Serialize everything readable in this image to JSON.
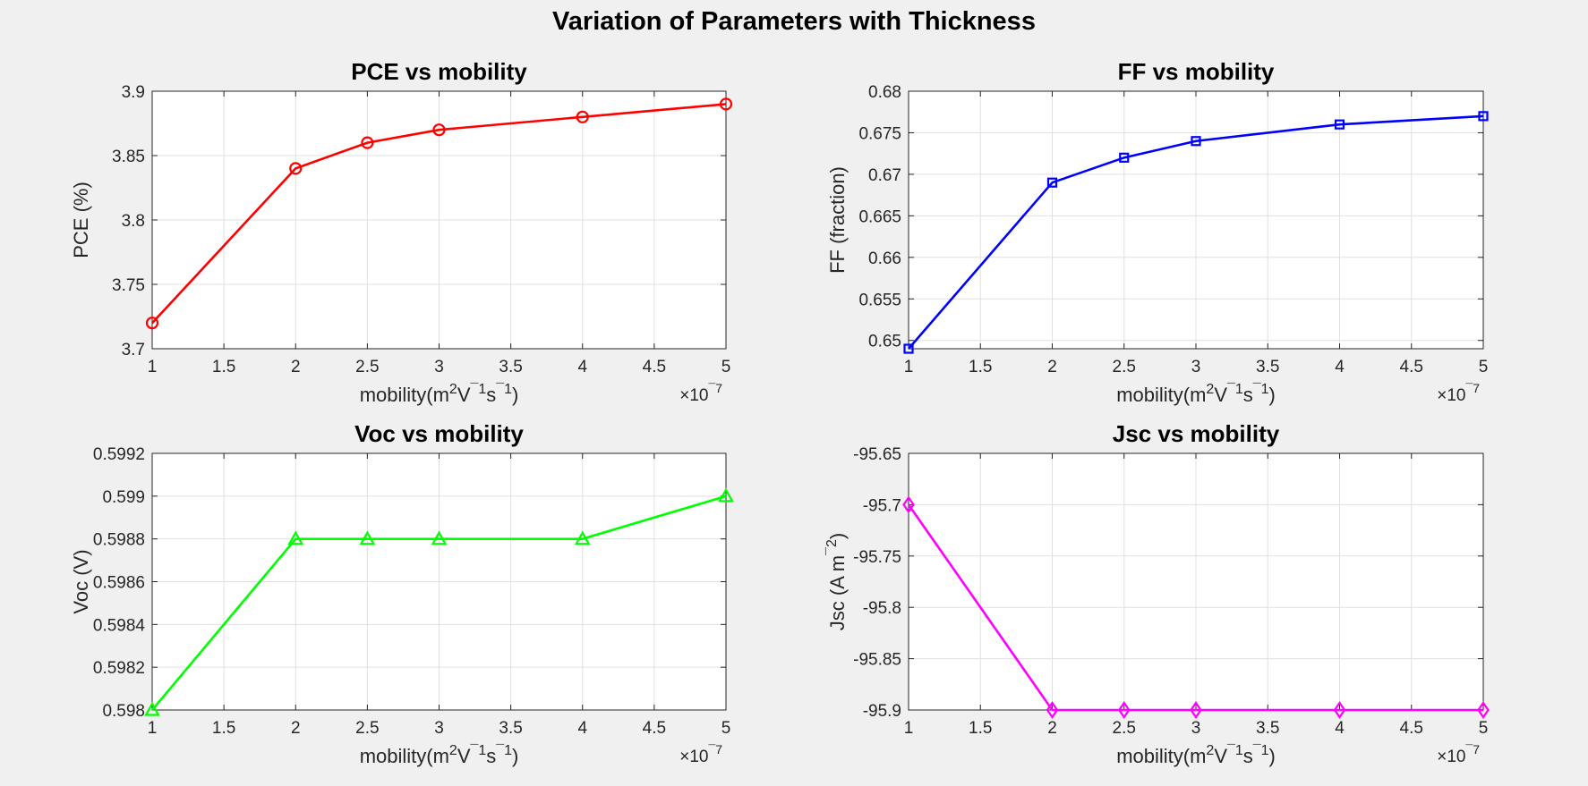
{
  "figure": {
    "title": "Variation of Parameters with Thickness"
  },
  "chart_data": [
    {
      "type": "line",
      "title": "PCE vs mobility",
      "xlabel": "mobility(m^2V^-1s^-1)",
      "ylabel": "PCE (%)",
      "x": [
        1,
        2,
        2.5,
        3,
        4,
        5
      ],
      "x_exponent": "×10^-7",
      "series": [
        {
          "values": [
            3.72,
            3.84,
            3.86,
            3.87,
            3.88,
            3.89
          ]
        }
      ],
      "xlim": [
        1,
        5
      ],
      "ylim": [
        3.7,
        3.9
      ],
      "xticks": [
        "1",
        "1.5",
        "2",
        "2.5",
        "3",
        "3.5",
        "4",
        "4.5",
        "5"
      ],
      "yticks": [
        "3.7",
        "3.75",
        "3.8",
        "3.85",
        "3.9"
      ],
      "grid": true,
      "color": "#ff0000",
      "marker": "circle"
    },
    {
      "type": "line",
      "title": "FF vs mobility",
      "xlabel": "mobility(m^2V^-1s^-1)",
      "ylabel": "FF (fraction)",
      "x": [
        1,
        2,
        2.5,
        3,
        4,
        5
      ],
      "x_exponent": "×10^-7",
      "series": [
        {
          "values": [
            0.649,
            0.669,
            0.672,
            0.674,
            0.676,
            0.677
          ]
        }
      ],
      "xlim": [
        1,
        5
      ],
      "ylim": [
        0.649,
        0.68
      ],
      "xticks": [
        "1",
        "1.5",
        "2",
        "2.5",
        "3",
        "3.5",
        "4",
        "4.5",
        "5"
      ],
      "yticks": [
        "0.65",
        "0.655",
        "0.66",
        "0.665",
        "0.67",
        "0.675",
        "0.68"
      ],
      "grid": true,
      "color": "#0000ff",
      "marker": "square"
    },
    {
      "type": "line",
      "title": "Voc vs mobility",
      "xlabel": "mobility(m^2V^-1s^-1)",
      "ylabel": "Voc (V)",
      "x": [
        1,
        2,
        2.5,
        3,
        4,
        5
      ],
      "x_exponent": "×10^-7",
      "series": [
        {
          "values": [
            0.598,
            0.5988,
            0.5988,
            0.5988,
            0.5988,
            0.599
          ]
        }
      ],
      "xlim": [
        1,
        5
      ],
      "ylim": [
        0.598,
        0.5992
      ],
      "xticks": [
        "1",
        "1.5",
        "2",
        "2.5",
        "3",
        "3.5",
        "4",
        "4.5",
        "5"
      ],
      "yticks": [
        "0.598",
        "0.5982",
        "0.5984",
        "0.5986",
        "0.5988",
        "0.599",
        "0.5992"
      ],
      "grid": true,
      "color": "#00ff00",
      "marker": "triangle"
    },
    {
      "type": "line",
      "title": "Jsc vs mobility",
      "xlabel": "mobility(m^2V^-1s^-1)",
      "ylabel": "Jsc (A m^-2)",
      "x": [
        1,
        2,
        2.5,
        3,
        4,
        5
      ],
      "x_exponent": "×10^-7",
      "series": [
        {
          "values": [
            -95.7,
            -95.9,
            -95.9,
            -95.9,
            -95.9,
            -95.9
          ]
        }
      ],
      "xlim": [
        1,
        5
      ],
      "ylim": [
        -95.9,
        -95.65
      ],
      "xticks": [
        "1",
        "1.5",
        "2",
        "2.5",
        "3",
        "3.5",
        "4",
        "4.5",
        "5"
      ],
      "yticks": [
        "-95.9",
        "-95.85",
        "-95.8",
        "-95.75",
        "-95.7",
        "-95.65"
      ],
      "grid": true,
      "color": "#ff00ff",
      "marker": "diamond"
    }
  ]
}
